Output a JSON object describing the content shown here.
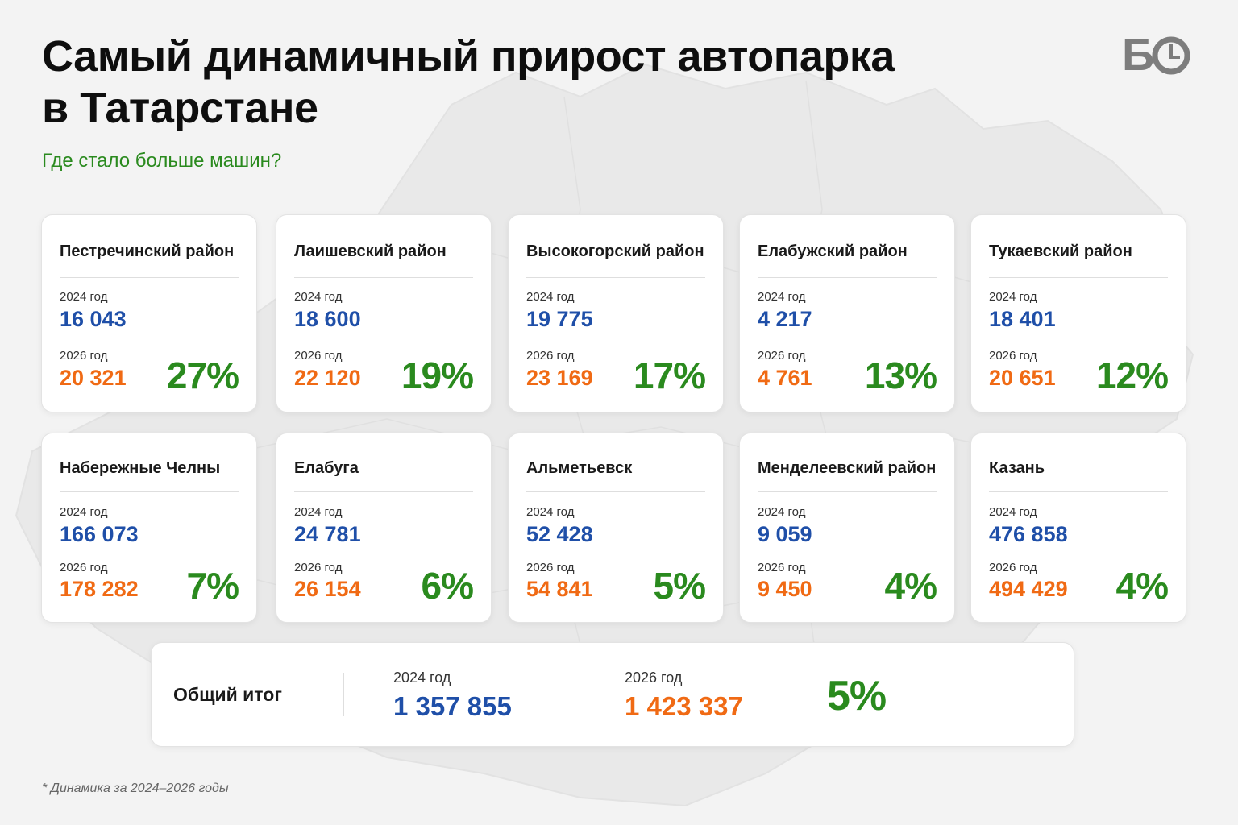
{
  "title_lines": [
    "Самый динамичный прирост автопарка",
    "в Татарстане"
  ],
  "subtitle": "Где стало больше машин?",
  "logo": {
    "text": "Б",
    "icon": "clock-icon"
  },
  "colors": {
    "value_2024": "#1f4fa8",
    "value_2026": "#f06a14",
    "growth": "#2a8a1e",
    "subtitle": "#2a8a1e"
  },
  "cards": [
    {
      "name": "Пестречинский район",
      "label_2024": "2024 год",
      "value_2024": "16 043",
      "label_2026": "2026 год",
      "value_2026": "20 321",
      "growth": "27%"
    },
    {
      "name": "Лаишевский район",
      "label_2024": "2024 год",
      "value_2024": "18 600",
      "label_2026": "2026 год",
      "value_2026": "22 120",
      "growth": "19%"
    },
    {
      "name": "Высокогорский район",
      "label_2024": "2024 год",
      "value_2024": "19 775",
      "label_2026": "2026 год",
      "value_2026": "23 169",
      "growth": "17%"
    },
    {
      "name": "Елабужский район",
      "label_2024": "2024 год",
      "value_2024": "4 217",
      "label_2026": "2026 год",
      "value_2026": "4 761",
      "growth": "13%"
    },
    {
      "name": "Тукаевский район",
      "label_2024": "2024 год",
      "value_2024": "18 401",
      "label_2026": "2026 год",
      "value_2026": "20 651",
      "growth": "12%"
    },
    {
      "name": "Набережные Челны",
      "label_2024": "2024 год",
      "value_2024": "166 073",
      "label_2026": "2026 год",
      "value_2026": "178 282",
      "growth": "7%"
    },
    {
      "name": "Елабуга",
      "label_2024": "2024 год",
      "value_2024": "24 781",
      "label_2026": "2026 год",
      "value_2026": "26 154",
      "growth": "6%"
    },
    {
      "name": "Альметьевск",
      "label_2024": "2024 год",
      "value_2024": "52 428",
      "label_2026": "2026 год",
      "value_2026": "54 841",
      "growth": "5%"
    },
    {
      "name": "Менделеевский район",
      "label_2024": "2024 год",
      "value_2024": "9 059",
      "label_2026": "2026 год",
      "value_2026": "9 450",
      "growth": "4%"
    },
    {
      "name": "Казань",
      "label_2024": "2024 год",
      "value_2024": "476 858",
      "label_2026": "2026 год",
      "value_2026": "494 429",
      "growth": "4%"
    }
  ],
  "total": {
    "label": "Общий итог",
    "label_2024": "2024 год",
    "value_2024": "1 357 855",
    "label_2026": "2026 год",
    "value_2026": "1 423 337",
    "growth": "5%"
  },
  "footnote": "* Динамика за 2024–2026 годы"
}
